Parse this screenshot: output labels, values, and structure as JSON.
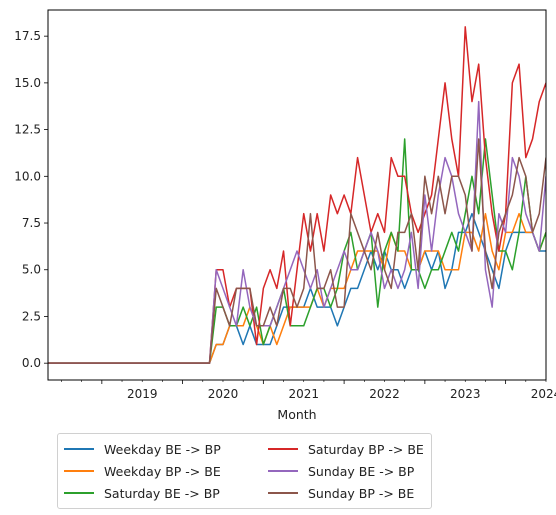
{
  "chart_data": {
    "type": "line",
    "title": "",
    "xlabel": "Month",
    "ylabel": "",
    "ylim": [
      -0.9,
      18.9
    ],
    "xlim": [
      "2018-05",
      "2024-07"
    ],
    "yticks": [
      "0.0",
      "2.5",
      "5.0",
      "7.5",
      "10.0",
      "12.5",
      "15.0",
      "17.5"
    ],
    "xticks": [
      "2019",
      "2020",
      "2021",
      "2022",
      "2023",
      "2024"
    ],
    "legend_position": "below",
    "grid": false,
    "x": [
      "2018-05",
      "2020-04",
      "2020-05",
      "2020-06",
      "2020-07",
      "2020-08",
      "2020-09",
      "2020-10",
      "2020-11",
      "2020-12",
      "2021-01",
      "2021-02",
      "2021-03",
      "2021-04",
      "2021-05",
      "2021-06",
      "2021-07",
      "2021-08",
      "2021-09",
      "2021-10",
      "2021-11",
      "2021-12",
      "2022-01",
      "2022-02",
      "2022-03",
      "2022-04",
      "2022-05",
      "2022-06",
      "2022-07",
      "2022-08",
      "2022-09",
      "2022-10",
      "2022-11",
      "2022-12",
      "2023-01",
      "2023-02",
      "2023-03",
      "2023-04",
      "2023-05",
      "2023-06",
      "2023-07",
      "2023-08",
      "2023-09",
      "2023-10",
      "2023-11",
      "2023-12",
      "2024-01",
      "2024-02",
      "2024-03",
      "2024-04",
      "2024-05",
      "2024-06",
      "2024-07"
    ],
    "series": [
      {
        "name": "Weekday BE -> BP",
        "color": "#1f77b4",
        "values": [
          0,
          0,
          0,
          1,
          1,
          2,
          2,
          1,
          2,
          1,
          1,
          1,
          2,
          3,
          3,
          3,
          3,
          4,
          3,
          3,
          3,
          2,
          3,
          4,
          4,
          5,
          6,
          5,
          6,
          5,
          5,
          4,
          5,
          5,
          6,
          5,
          6,
          4,
          5,
          7,
          7,
          8,
          7,
          6,
          5,
          4,
          6,
          7,
          7,
          7,
          7,
          6,
          6
        ]
      },
      {
        "name": "Weekday BP -> BE",
        "color": "#ff7f0e",
        "values": [
          0,
          0,
          0,
          1,
          1,
          2,
          2,
          2,
          3,
          2,
          1,
          2,
          1,
          2,
          3,
          3,
          3,
          3,
          4,
          3,
          4,
          4,
          4,
          5,
          6,
          6,
          6,
          6,
          5,
          7,
          6,
          6,
          5,
          5,
          6,
          6,
          6,
          5,
          5,
          5,
          7,
          7,
          6,
          8,
          6,
          5,
          7,
          7,
          8,
          7,
          7,
          6,
          7
        ]
      },
      {
        "name": "Saturday BE -> BP",
        "color": "#2ca02c",
        "values": [
          0,
          0,
          0,
          3,
          3,
          2,
          2,
          3,
          2,
          3,
          1,
          2,
          3,
          4,
          2,
          2,
          2,
          3,
          4,
          4,
          3,
          4,
          6,
          7,
          5,
          6,
          7,
          3,
          6,
          7,
          6,
          12,
          5,
          5,
          4,
          5,
          5,
          6,
          7,
          6,
          8,
          10,
          8,
          12,
          9,
          6,
          6,
          5,
          7,
          10,
          7,
          6,
          7
        ]
      },
      {
        "name": "Saturday BP -> BE",
        "color": "#d62728",
        "values": [
          0,
          0,
          0,
          5,
          5,
          3,
          4,
          4,
          4,
          1,
          4,
          5,
          4,
          6,
          2,
          5,
          8,
          6,
          8,
          6,
          9,
          8,
          9,
          8,
          11,
          9,
          7,
          8,
          7,
          11,
          10,
          10,
          8,
          7,
          8,
          9,
          12,
          15,
          12,
          10,
          18,
          14,
          16,
          11,
          8,
          6,
          8,
          15,
          16,
          11,
          12,
          14,
          15
        ]
      },
      {
        "name": "Sunday BE -> BP",
        "color": "#9467bd",
        "values": [
          0,
          0,
          0,
          5,
          4,
          3,
          2,
          5,
          3,
          2,
          2,
          2,
          3,
          4,
          5,
          6,
          5,
          4,
          5,
          3,
          4,
          5,
          6,
          5,
          5,
          6,
          7,
          6,
          4,
          5,
          4,
          5,
          7,
          4,
          9,
          6,
          9,
          11,
          10,
          8,
          7,
          6,
          14,
          5,
          3,
          8,
          7,
          11,
          10,
          8,
          7,
          6,
          10
        ]
      },
      {
        "name": "Sunday BP -> BE",
        "color": "#8c564b",
        "values": [
          0,
          0,
          0,
          4,
          3,
          2,
          4,
          4,
          4,
          2,
          2,
          3,
          2,
          4,
          4,
          3,
          4,
          8,
          4,
          4,
          5,
          3,
          3,
          8,
          7,
          6,
          5,
          7,
          5,
          4,
          7,
          7,
          8,
          5,
          10,
          8,
          10,
          8,
          10,
          10,
          9,
          6,
          12,
          6,
          4,
          7,
          8,
          9,
          11,
          10,
          7,
          8,
          11
        ]
      }
    ]
  }
}
